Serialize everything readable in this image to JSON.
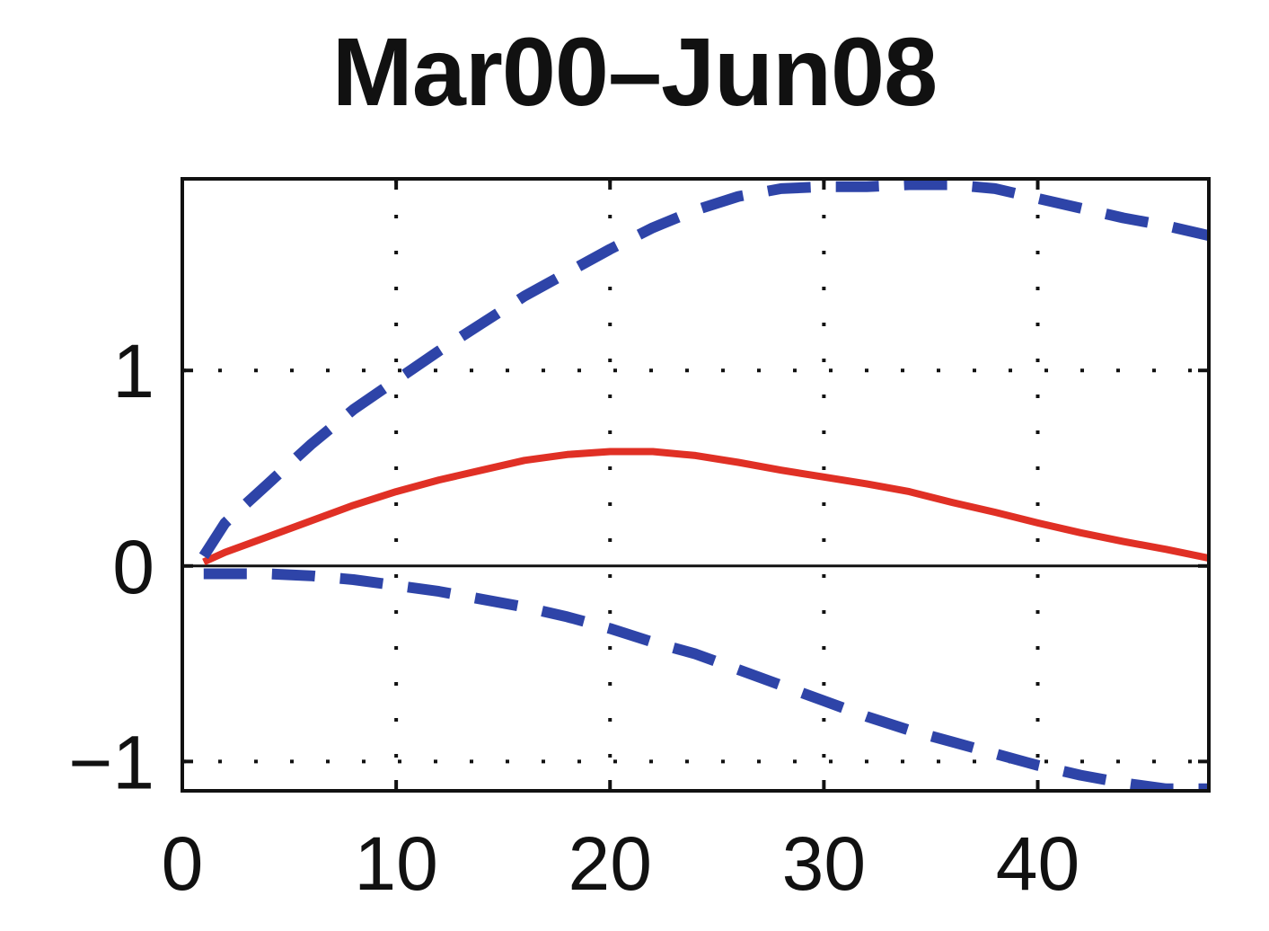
{
  "chart_data": {
    "type": "line",
    "title": "Mar00–Jun08",
    "xlabel": "",
    "ylabel": "",
    "xlim": [
      0,
      48
    ],
    "ylim": [
      -1.15,
      1.98
    ],
    "grid": true,
    "x_ticks": [
      0,
      10,
      20,
      30,
      40
    ],
    "x_tick_labels": [
      "0",
      "10",
      "20",
      "30",
      "40"
    ],
    "y_ticks": [
      -1,
      0,
      1
    ],
    "y_tick_labels": [
      "−1",
      "0",
      "1"
    ],
    "zero_line": true,
    "series": [
      {
        "role": "estimate",
        "style": "solid",
        "color": "#e03025",
        "x": [
          1,
          2,
          4,
          6,
          8,
          10,
          12,
          14,
          16,
          18,
          20,
          22,
          24,
          26,
          28,
          30,
          32,
          34,
          36,
          38,
          40,
          42,
          44,
          46,
          48
        ],
        "y": [
          0.02,
          0.07,
          0.15,
          0.23,
          0.31,
          0.38,
          0.44,
          0.49,
          0.54,
          0.57,
          0.585,
          0.585,
          0.565,
          0.53,
          0.49,
          0.455,
          0.42,
          0.38,
          0.325,
          0.275,
          0.22,
          0.17,
          0.125,
          0.085,
          0.04
        ]
      },
      {
        "role": "upper band",
        "style": "dashed",
        "color": "#2e44a8",
        "x": [
          1,
          2,
          4,
          6,
          8,
          10,
          12,
          14,
          16,
          18,
          20,
          22,
          24,
          26,
          28,
          30,
          32,
          34,
          36,
          38,
          40,
          42,
          44,
          46,
          48
        ],
        "y": [
          0.05,
          0.22,
          0.42,
          0.62,
          0.8,
          0.95,
          1.1,
          1.24,
          1.38,
          1.5,
          1.62,
          1.73,
          1.82,
          1.89,
          1.93,
          1.94,
          1.94,
          1.95,
          1.95,
          1.93,
          1.88,
          1.83,
          1.78,
          1.74,
          1.69
        ]
      },
      {
        "role": "lower band",
        "style": "dashed",
        "color": "#2e44a8",
        "x": [
          1,
          2,
          4,
          6,
          8,
          10,
          12,
          14,
          16,
          18,
          20,
          22,
          24,
          26,
          28,
          30,
          32,
          34,
          36,
          38,
          40,
          42,
          44,
          46,
          48
        ],
        "y": [
          -0.04,
          -0.04,
          -0.04,
          -0.05,
          -0.07,
          -0.1,
          -0.13,
          -0.17,
          -0.21,
          -0.26,
          -0.32,
          -0.39,
          -0.45,
          -0.53,
          -0.61,
          -0.69,
          -0.77,
          -0.84,
          -0.9,
          -0.96,
          -1.02,
          -1.07,
          -1.11,
          -1.14,
          -1.14
        ]
      }
    ]
  }
}
